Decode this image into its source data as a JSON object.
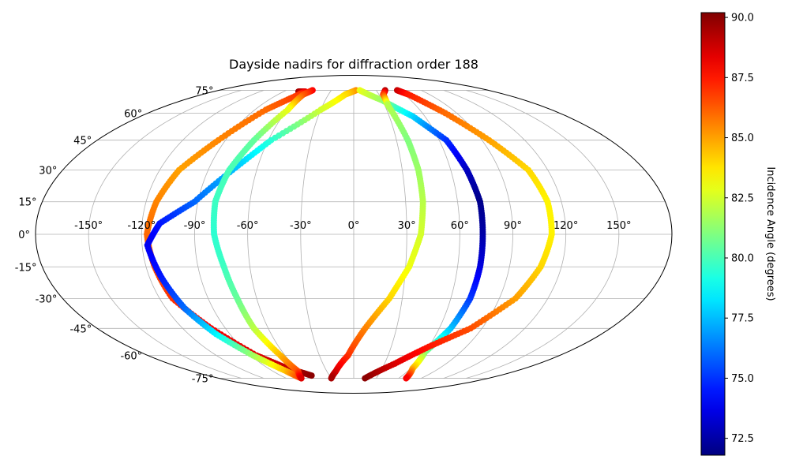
{
  "chart_data": {
    "type": "scatter",
    "projection": "mollweide",
    "title": "Dayside nadirs for diffraction order 188",
    "grid": true,
    "longitude_ticks": [
      "-150°",
      "-120°",
      "-90°",
      "-60°",
      "-30°",
      "0°",
      "30°",
      "60°",
      "90°",
      "120°",
      "150°"
    ],
    "latitude_ticks": [
      "75°",
      "60°",
      "45°",
      "30°",
      "15°",
      "0°",
      "-15°",
      "-30°",
      "-45°",
      "-60°",
      "-75°"
    ],
    "colorbar": {
      "label": "Incidence Angle (degrees)",
      "colormap": "jet",
      "range": [
        71.8,
        90.2
      ],
      "ticks": [
        "72.5",
        "75.0",
        "77.5",
        "80.0",
        "82.5",
        "85.0",
        "87.5",
        "90.0"
      ]
    },
    "series": [
      {
        "points": [
          {
            "lon": -71,
            "lat": 74,
            "inc": 89.6
          },
          {
            "lon": -62,
            "lat": 74,
            "inc": 88.5
          },
          {
            "lon": -65,
            "lat": 72,
            "inc": 87.0
          },
          {
            "lon": -80,
            "lat": 62,
            "inc": 86.0
          },
          {
            "lon": -95,
            "lat": 45,
            "inc": 85.5
          },
          {
            "lon": -108,
            "lat": 30,
            "inc": 85.0
          },
          {
            "lon": -114,
            "lat": 15,
            "inc": 85.5
          },
          {
            "lon": -117,
            "lat": 0,
            "inc": 86.0
          },
          {
            "lon": -115,
            "lat": -15,
            "inc": 86.5
          },
          {
            "lon": -112,
            "lat": -30,
            "inc": 87.0
          },
          {
            "lon": -100,
            "lat": -45,
            "inc": 88.0
          },
          {
            "lon": -85,
            "lat": -60,
            "inc": 88.5
          },
          {
            "lon": -70,
            "lat": -68,
            "inc": 89.0
          },
          {
            "lon": -52,
            "lat": -73,
            "inc": 90.0
          }
        ]
      },
      {
        "points": [
          {
            "lon": 3,
            "lat": 75,
            "inc": 85.5
          },
          {
            "lon": -10,
            "lat": 72,
            "inc": 84.0
          },
          {
            "lon": -30,
            "lat": 62,
            "inc": 82.5
          },
          {
            "lon": -58,
            "lat": 45,
            "inc": 79.5
          },
          {
            "lon": -75,
            "lat": 30,
            "inc": 77.5
          },
          {
            "lon": -92,
            "lat": 15,
            "inc": 76.0
          },
          {
            "lon": -110,
            "lat": 5,
            "inc": 74.5
          },
          {
            "lon": -117,
            "lat": -5,
            "inc": 73.8
          },
          {
            "lon": -113,
            "lat": -20,
            "inc": 74.5
          },
          {
            "lon": -108,
            "lat": -35,
            "inc": 76.0
          },
          {
            "lon": -100,
            "lat": -48,
            "inc": 78.5
          },
          {
            "lon": -88,
            "lat": -60,
            "inc": 81.5
          },
          {
            "lon": -75,
            "lat": -70,
            "inc": 84.5
          },
          {
            "lon": -70,
            "lat": -75,
            "inc": 87.0
          }
        ]
      },
      {
        "points": [
          {
            "lon": -55,
            "lat": 75,
            "inc": 88.0
          },
          {
            "lon": -60,
            "lat": 72,
            "inc": 86.5
          },
          {
            "lon": -60,
            "lat": 62,
            "inc": 83.0
          },
          {
            "lon": -70,
            "lat": 45,
            "inc": 80.5
          },
          {
            "lon": -77,
            "lat": 30,
            "inc": 80.0
          },
          {
            "lon": -80,
            "lat": 15,
            "inc": 79.8
          },
          {
            "lon": -79,
            "lat": 0,
            "inc": 79.5
          },
          {
            "lon": -75,
            "lat": -15,
            "inc": 79.8
          },
          {
            "lon": -72,
            "lat": -30,
            "inc": 80.5
          },
          {
            "lon": -70,
            "lat": -45,
            "inc": 82.0
          },
          {
            "lon": -64,
            "lat": -60,
            "inc": 84.5
          },
          {
            "lon": -62,
            "lat": -70,
            "inc": 86.5
          },
          {
            "lon": -70,
            "lat": -75,
            "inc": 88.5
          }
        ]
      },
      {
        "points": [
          {
            "lon": 8,
            "lat": 75,
            "inc": 83.0
          },
          {
            "lon": 30,
            "lat": 68,
            "inc": 81.5
          },
          {
            "lon": 50,
            "lat": 58,
            "inc": 78.0
          },
          {
            "lon": 65,
            "lat": 45,
            "inc": 75.0
          },
          {
            "lon": 70,
            "lat": 30,
            "inc": 73.0
          },
          {
            "lon": 73,
            "lat": 15,
            "inc": 72.0
          },
          {
            "lon": 73,
            "lat": 0,
            "inc": 72.5
          },
          {
            "lon": 73,
            "lat": -15,
            "inc": 73.5
          },
          {
            "lon": 72,
            "lat": -30,
            "inc": 75.0
          },
          {
            "lon": 68,
            "lat": -45,
            "inc": 77.5
          },
          {
            "lon": 60,
            "lat": -58,
            "inc": 81.0
          },
          {
            "lon": 62,
            "lat": -68,
            "inc": 84.5
          },
          {
            "lon": 70,
            "lat": -75,
            "inc": 88.0
          }
        ]
      },
      {
        "points": [
          {
            "lon": 42,
            "lat": 75,
            "inc": 89.5
          },
          {
            "lon": 35,
            "lat": 72,
            "inc": 87.0
          },
          {
            "lon": 33,
            "lat": 65,
            "inc": 82.0
          },
          {
            "lon": 38,
            "lat": 45,
            "inc": 81.0
          },
          {
            "lon": 40,
            "lat": 30,
            "inc": 81.5
          },
          {
            "lon": 40,
            "lat": 15,
            "inc": 82.0
          },
          {
            "lon": 38,
            "lat": 0,
            "inc": 82.5
          },
          {
            "lon": 32,
            "lat": -15,
            "inc": 83.0
          },
          {
            "lon": 22,
            "lat": -30,
            "inc": 84.0
          },
          {
            "lon": 8,
            "lat": -45,
            "inc": 85.5
          },
          {
            "lon": -5,
            "lat": -60,
            "inc": 87.0
          },
          {
            "lon": -20,
            "lat": -70,
            "inc": 88.5
          },
          {
            "lon": -30,
            "lat": -75,
            "inc": 89.5
          }
        ]
      },
      {
        "points": [
          {
            "lon": 58,
            "lat": 75,
            "inc": 89.0
          },
          {
            "lon": 65,
            "lat": 72,
            "inc": 87.5
          },
          {
            "lon": 80,
            "lat": 60,
            "inc": 86.0
          },
          {
            "lon": 95,
            "lat": 45,
            "inc": 85.0
          },
          {
            "lon": 108,
            "lat": 30,
            "inc": 84.0
          },
          {
            "lon": 112,
            "lat": 15,
            "inc": 83.5
          },
          {
            "lon": 112,
            "lat": 0,
            "inc": 83.5
          },
          {
            "lon": 108,
            "lat": -15,
            "inc": 84.0
          },
          {
            "lon": 100,
            "lat": -30,
            "inc": 85.0
          },
          {
            "lon": 82,
            "lat": -45,
            "inc": 86.5
          },
          {
            "lon": 60,
            "lat": -55,
            "inc": 87.5
          },
          {
            "lon": 40,
            "lat": -65,
            "inc": 88.5
          },
          {
            "lon": 15,
            "lat": -75,
            "inc": 90.0
          }
        ]
      }
    ]
  }
}
